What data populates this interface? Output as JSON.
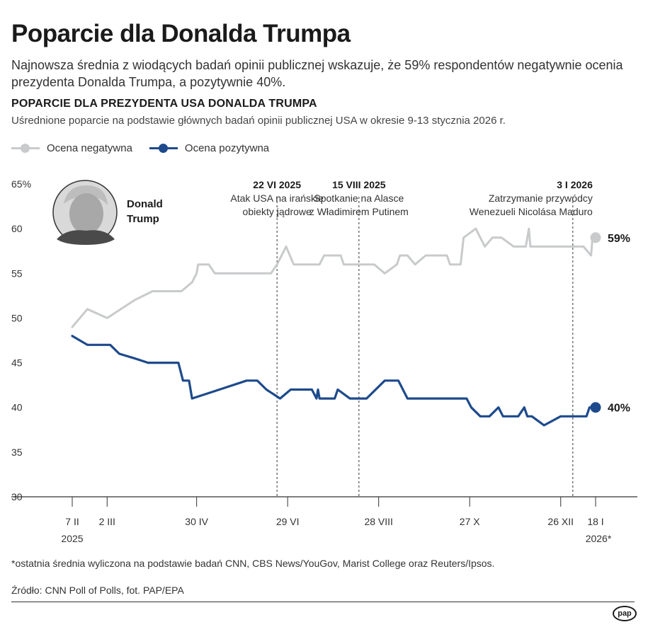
{
  "title": "Poparcie dla Donalda Trumpa",
  "subtitle": "Najnowsza średnia z wiodących badań opinii publicznej wskazuje, że 59% respondentów negatywnie ocenia prezydenta Donalda Trumpa, a pozytywnie 40%.",
  "footnote": "*ostatnia średnia wyliczona na podstawie badań CNN, CBS News/YouGov, Marist College oraz Reuters/Ipsos.",
  "source": "Źródło: CNN Poll of Polls, fot. PAP/EPA",
  "logo_text": "pap",
  "portrait_label": "Donald Trump",
  "colors": {
    "negative": "#c8cacb",
    "positive": "#1d4a8c",
    "axis": "#333333",
    "grid": "#333333"
  },
  "chart_data": {
    "type": "line",
    "title": "POPARCIE DLA PREZYDENTA USA DONALDA TRUMPA",
    "subtitle": "Uśrednione poparcie na podstawie głównych badań opinii publicznej USA w okresie 9-13 stycznia 2026 r.",
    "y_unit": "%",
    "ylim": [
      30,
      65
    ],
    "yticks": [
      30,
      35,
      40,
      45,
      50,
      55,
      60,
      65
    ],
    "xlim": [
      "2025-02-01",
      "2026-01-25"
    ],
    "xticks": [
      {
        "date": "2025-02-07",
        "label": "7 II",
        "sublabel": "2025"
      },
      {
        "date": "2025-03-02",
        "label": "2 III",
        "sublabel": ""
      },
      {
        "date": "2025-04-30",
        "label": "30 IV",
        "sublabel": ""
      },
      {
        "date": "2025-06-29",
        "label": "29 VI",
        "sublabel": ""
      },
      {
        "date": "2025-08-28",
        "label": "28 VIII",
        "sublabel": ""
      },
      {
        "date": "2025-10-27",
        "label": "27 X",
        "sublabel": ""
      },
      {
        "date": "2025-12-26",
        "label": "26 XII",
        "sublabel": ""
      },
      {
        "date": "2026-01-18",
        "label": "18 I",
        "sublabel": "2026*"
      }
    ],
    "grid": false,
    "legend_position": "top-left",
    "annotations": [
      {
        "date": "2025-06-22",
        "label": "22 VI 2025",
        "text": [
          "Atak USA na irańskie",
          "obiekty jądrowe"
        ]
      },
      {
        "date": "2025-08-15",
        "label": "15 VIII 2025",
        "text": [
          "Spotkanie na Alasce",
          "z Władimirem Putinem"
        ]
      },
      {
        "date": "2026-01-03",
        "label": "3 I 2026",
        "text": [
          "Zatrzymanie przywódcy",
          "Wenezueli Nicolása Maduro"
        ]
      }
    ],
    "series": [
      {
        "name": "Ocena negatywna",
        "color": "#c8cacb",
        "end_label": "59%",
        "points": [
          [
            "2025-02-07",
            49
          ],
          [
            "2025-02-17",
            51
          ],
          [
            "2025-03-02",
            50
          ],
          [
            "2025-03-20",
            52
          ],
          [
            "2025-04-01",
            53
          ],
          [
            "2025-04-20",
            53
          ],
          [
            "2025-04-27",
            54
          ],
          [
            "2025-04-30",
            55
          ],
          [
            "2025-05-01",
            56
          ],
          [
            "2025-05-08",
            56
          ],
          [
            "2025-05-12",
            55
          ],
          [
            "2025-05-20",
            55
          ],
          [
            "2025-06-05",
            55
          ],
          [
            "2025-06-18",
            55
          ],
          [
            "2025-06-22",
            56
          ],
          [
            "2025-06-28",
            58
          ],
          [
            "2025-07-03",
            56
          ],
          [
            "2025-07-10",
            56
          ],
          [
            "2025-07-20",
            56
          ],
          [
            "2025-07-23",
            57
          ],
          [
            "2025-08-03",
            57
          ],
          [
            "2025-08-05",
            56
          ],
          [
            "2025-08-15",
            56
          ],
          [
            "2025-08-25",
            56
          ],
          [
            "2025-09-01",
            55
          ],
          [
            "2025-09-09",
            56
          ],
          [
            "2025-09-11",
            57
          ],
          [
            "2025-09-16",
            57
          ],
          [
            "2025-09-21",
            56
          ],
          [
            "2025-09-28",
            57
          ],
          [
            "2025-10-05",
            57
          ],
          [
            "2025-10-12",
            57
          ],
          [
            "2025-10-14",
            56
          ],
          [
            "2025-10-21",
            56
          ],
          [
            "2025-10-23",
            59
          ],
          [
            "2025-10-31",
            60
          ],
          [
            "2025-11-06",
            58
          ],
          [
            "2025-11-11",
            59
          ],
          [
            "2025-11-17",
            59
          ],
          [
            "2025-11-25",
            58
          ],
          [
            "2025-12-03",
            58
          ],
          [
            "2025-12-05",
            60
          ],
          [
            "2025-12-06",
            58
          ],
          [
            "2025-12-15",
            58
          ],
          [
            "2025-12-24",
            58
          ],
          [
            "2026-01-03",
            58
          ],
          [
            "2026-01-10",
            58
          ],
          [
            "2026-01-15",
            57
          ],
          [
            "2026-01-16",
            59
          ],
          [
            "2026-01-18",
            59
          ]
        ]
      },
      {
        "name": "Ocena pozytywna",
        "color": "#1d4a8c",
        "end_label": "40%",
        "points": [
          [
            "2025-02-07",
            48
          ],
          [
            "2025-02-17",
            47
          ],
          [
            "2025-02-23",
            47
          ],
          [
            "2025-03-04",
            47
          ],
          [
            "2025-03-10",
            46
          ],
          [
            "2025-03-20",
            45.5
          ],
          [
            "2025-03-29",
            45
          ],
          [
            "2025-04-07",
            45
          ],
          [
            "2025-04-18",
            45
          ],
          [
            "2025-04-21",
            43
          ],
          [
            "2025-04-25",
            43
          ],
          [
            "2025-04-27",
            41
          ],
          [
            "2025-05-15",
            42
          ],
          [
            "2025-06-02",
            43
          ],
          [
            "2025-06-09",
            43
          ],
          [
            "2025-06-15",
            42
          ],
          [
            "2025-06-24",
            41
          ],
          [
            "2025-07-01",
            42
          ],
          [
            "2025-07-10",
            42
          ],
          [
            "2025-07-15",
            42
          ],
          [
            "2025-07-18",
            41
          ],
          [
            "2025-07-19",
            42
          ],
          [
            "2025-07-20",
            41
          ],
          [
            "2025-07-30",
            41
          ],
          [
            "2025-08-01",
            42
          ],
          [
            "2025-08-09",
            41
          ],
          [
            "2025-08-20",
            41
          ],
          [
            "2025-09-01",
            43
          ],
          [
            "2025-09-10",
            43
          ],
          [
            "2025-09-16",
            41
          ],
          [
            "2025-10-25",
            41
          ],
          [
            "2025-10-28",
            40
          ],
          [
            "2025-11-03",
            39
          ],
          [
            "2025-11-09",
            39
          ],
          [
            "2025-11-15",
            40
          ],
          [
            "2025-11-18",
            39
          ],
          [
            "2025-11-28",
            39
          ],
          [
            "2025-12-02",
            40
          ],
          [
            "2025-12-04",
            39
          ],
          [
            "2025-12-07",
            39
          ],
          [
            "2025-12-15",
            38
          ],
          [
            "2025-12-26",
            39
          ],
          [
            "2026-01-05",
            39
          ],
          [
            "2026-01-12",
            39
          ],
          [
            "2026-01-14",
            40
          ],
          [
            "2026-01-18",
            40
          ]
        ]
      }
    ]
  }
}
